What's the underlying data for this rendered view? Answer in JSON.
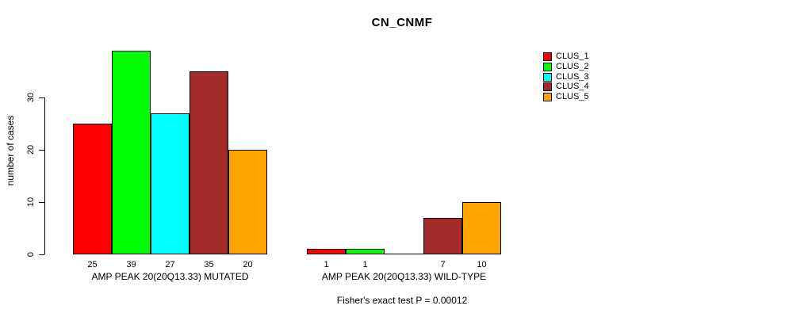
{
  "figure": {
    "title": "CN_CNMF",
    "ylabel": "number of cases",
    "footer": "Fisher's exact test P = 0.00012"
  },
  "legend": {
    "entries": [
      {
        "label": "CLUS_1",
        "color": "#FF0000"
      },
      {
        "label": "CLUS_2",
        "color": "#00FF00"
      },
      {
        "label": "CLUS_3",
        "color": "#00FFFF"
      },
      {
        "label": "CLUS_4",
        "color": "#A52A2A"
      },
      {
        "label": "CLUS_5",
        "color": "#FFA500"
      }
    ]
  },
  "chart_data": {
    "type": "bar",
    "title": "CN_CNMF",
    "ylabel": "number of cases",
    "xlabel": "",
    "ylim": [
      0,
      39
    ],
    "yticks": [
      0,
      10,
      20,
      30
    ],
    "grid": false,
    "legend_position": "top-right",
    "series_names": [
      "CLUS_1",
      "CLUS_2",
      "CLUS_3",
      "CLUS_4",
      "CLUS_5"
    ],
    "series_colors": [
      "#FF0000",
      "#00FF00",
      "#00FFFF",
      "#A52A2A",
      "#FFA500"
    ],
    "groups": [
      {
        "label": "AMP PEAK 20(20Q13.33) MUTATED",
        "values": [
          25,
          39,
          27,
          35,
          20
        ],
        "bar_labels": [
          "25",
          "39",
          "27",
          "35",
          "20"
        ]
      },
      {
        "label": "AMP PEAK 20(20Q13.33) WILD-TYPE",
        "values": [
          1,
          1,
          0,
          7,
          10
        ],
        "bar_labels": [
          "1",
          "1",
          "",
          "7",
          "10"
        ]
      }
    ],
    "annotation": "Fisher's exact test P = 0.00012"
  }
}
